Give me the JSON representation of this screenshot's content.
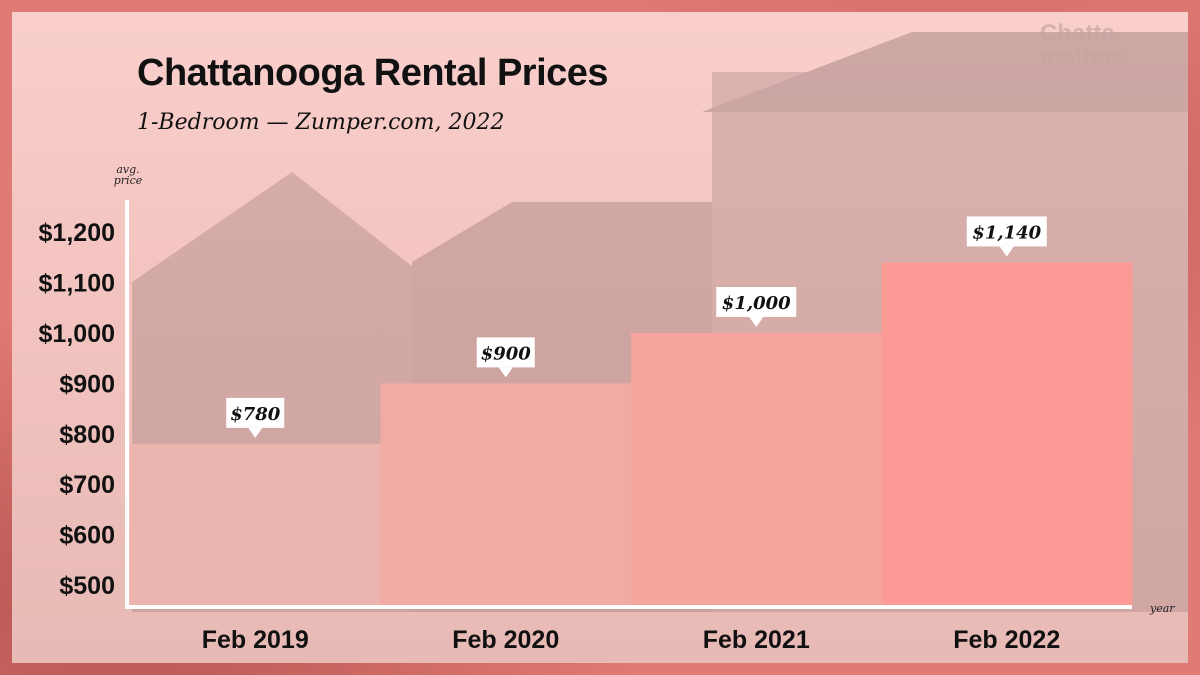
{
  "logo_text": "Chatta-matters",
  "colors": {
    "background": "#e4716c",
    "panel": "#f6c9c5",
    "axis": "#ffffff",
    "bars": [
      "#ebb4ae",
      "#f1aaa4",
      "#f6a49e",
      "#fc9b95"
    ],
    "label_box": "#ffffff"
  },
  "chart_data": {
    "type": "bar",
    "title": "Chattanooga Rental Prices",
    "subtitle": "1-Bedroom — Zumper.com, 2022",
    "xlabel": "year",
    "ylabel": "avg. price",
    "categories": [
      "Feb 2019",
      "Feb 2020",
      "Feb 2021",
      "Feb 2022"
    ],
    "values": [
      780,
      900,
      1000,
      1140
    ],
    "data_labels": [
      "$780",
      "$900",
      "$1,000",
      "$1,140"
    ],
    "yticks": [
      500,
      600,
      700,
      800,
      900,
      1000,
      1100,
      1200
    ],
    "ytick_labels": [
      "$500",
      "$600",
      "$700",
      "$800",
      "$900",
      "$1,000",
      "$1,100",
      "$1,200"
    ],
    "ylim": [
      456,
      1250
    ],
    "grid": false,
    "legend": "none"
  }
}
